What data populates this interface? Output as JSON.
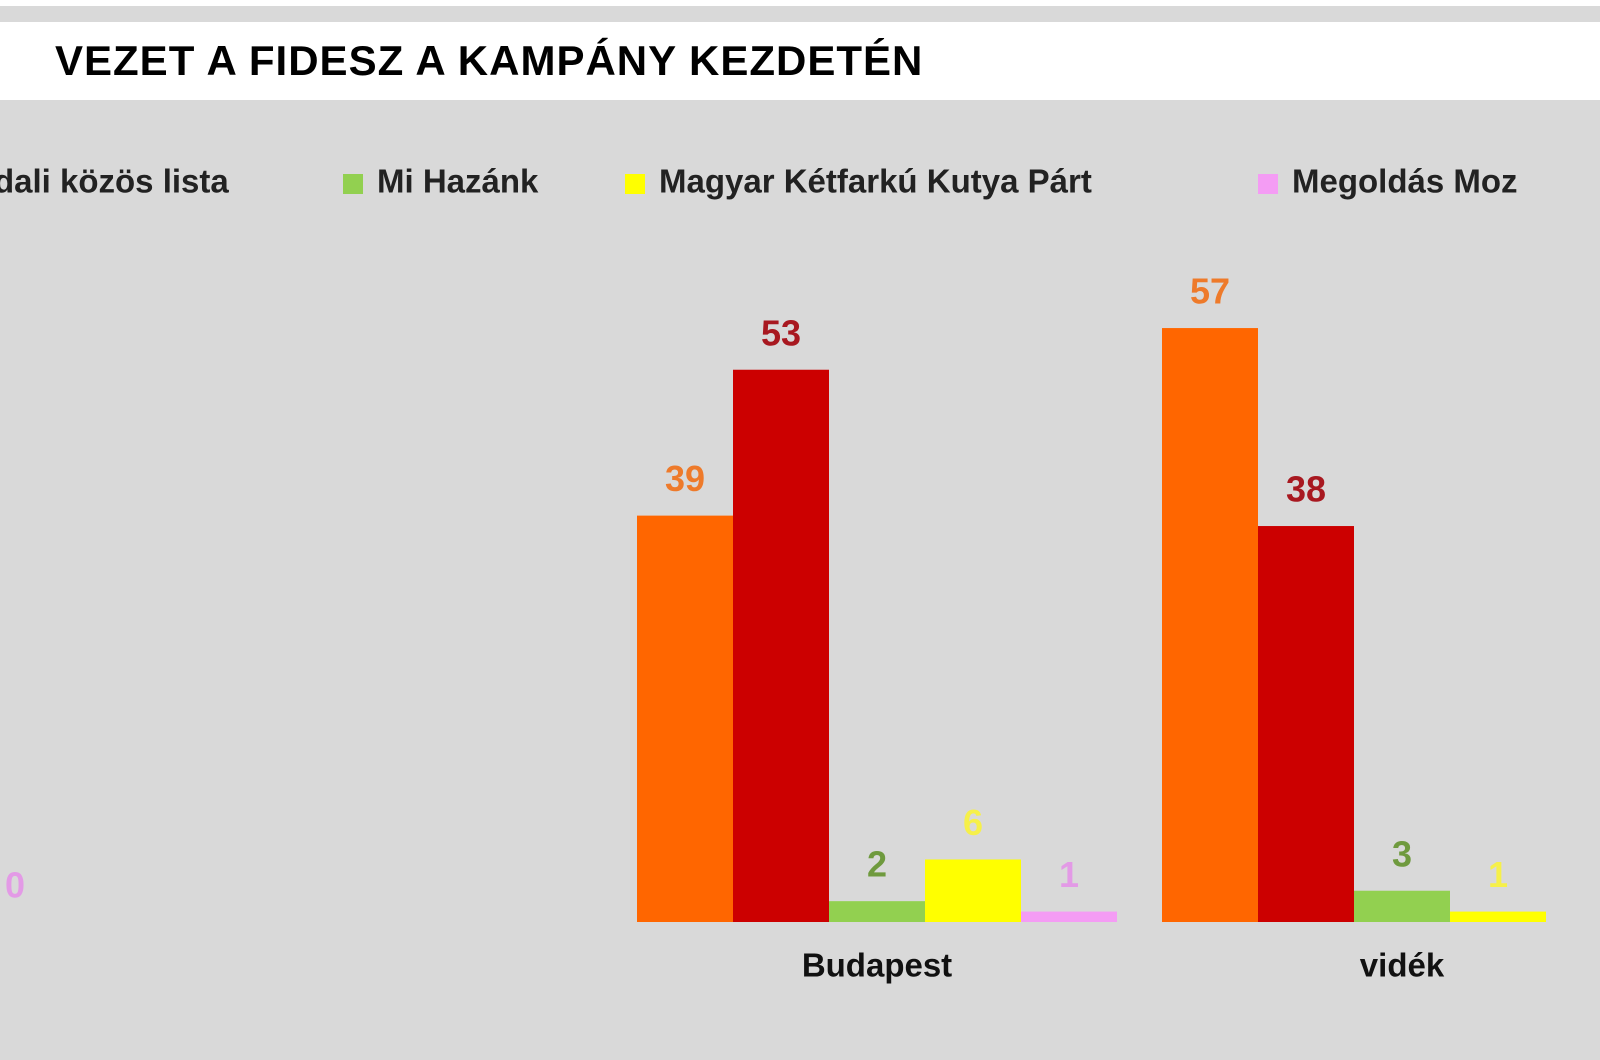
{
  "chart_data": {
    "type": "bar",
    "title": "VEZET A FIDESZ A KAMPÁNY KEZDETÉN",
    "categories": [
      null,
      "Budapest",
      "vidék"
    ],
    "series": [
      {
        "color": "#ff6600",
        "label_color": "#ee7a2a",
        "values": [
          null,
          39,
          57
        ]
      },
      {
        "name": "dali közös lista",
        "color": "#cc0000",
        "label_color": "#a81820",
        "values": [
          null,
          53,
          38
        ]
      },
      {
        "name": "Mi Hazánk",
        "color": "#92d050",
        "label_color": "#6f9a3e",
        "values": [
          null,
          2,
          3
        ]
      },
      {
        "name": "Magyar Kétfarkú Kutya Párt",
        "color": "#ffff00",
        "label_color": "#f6f04a",
        "values": [
          null,
          6,
          1
        ]
      },
      {
        "name": "Megoldás Moz",
        "color": "#f49cf4",
        "label_color": "#e39ae6",
        "values": [
          0,
          1,
          null
        ]
      }
    ]
  }
}
